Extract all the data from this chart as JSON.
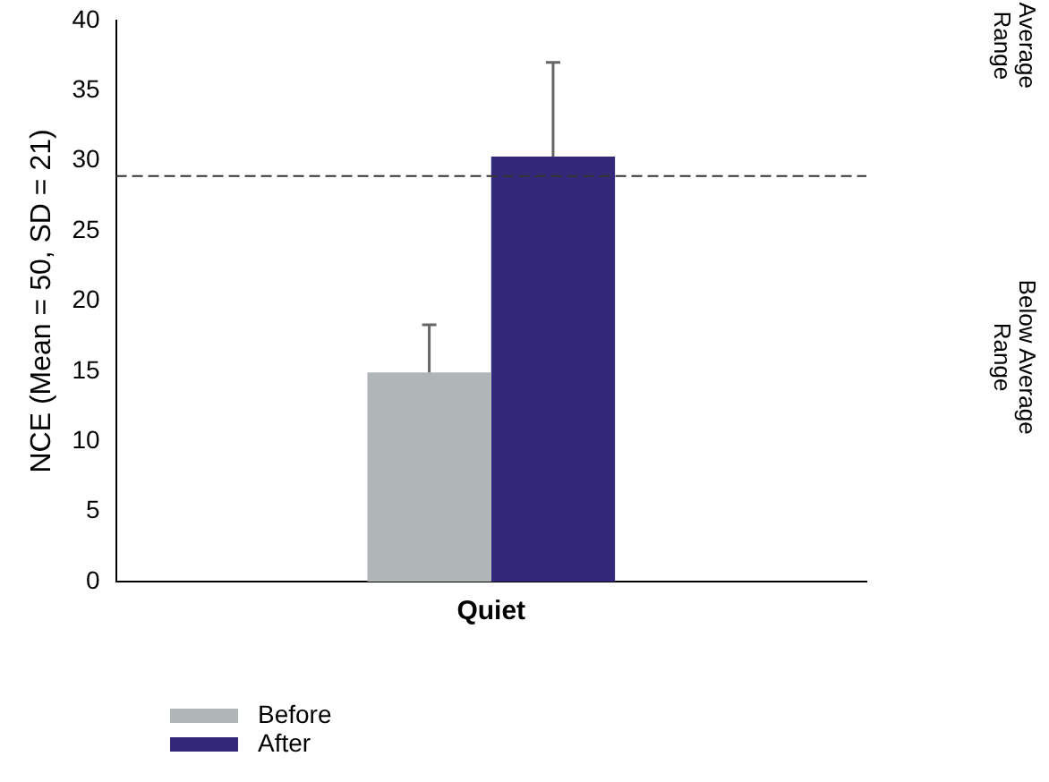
{
  "chart_data": {
    "type": "bar",
    "ylabel": "NCE (Mean = 50, SD = 21)",
    "categories": [
      "Quiet"
    ],
    "series": [
      {
        "name": "Before",
        "color": "#b0b6b8",
        "values": [
          14.9
        ],
        "errors": [
          [
            14.9,
            18.3
          ]
        ]
      },
      {
        "name": "After",
        "color": "#33297a",
        "values": [
          30.3
        ],
        "errors": [
          [
            30.3,
            37.0
          ]
        ]
      }
    ],
    "ylim": [
      0,
      40
    ],
    "yticks": [
      0,
      5,
      10,
      15,
      20,
      25,
      30,
      35,
      40
    ],
    "grid": false,
    "legend": "bottom left",
    "ref_lines": [
      {
        "axis": "y",
        "value": 28.9,
        "color": "#333333",
        "line_style": "dashed"
      }
    ],
    "annotations": [
      "Average Range",
      "Below Average Range"
    ]
  }
}
